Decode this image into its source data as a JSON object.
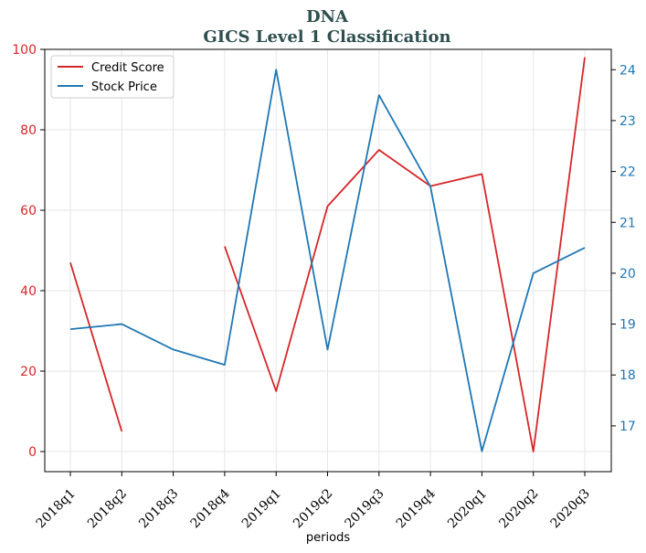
{
  "chart_data": {
    "type": "line",
    "title": "DNA",
    "subtitle": "GICS Level 1 Classification",
    "xlabel": "periods",
    "categories": [
      "2018q1",
      "2018q2",
      "2018q3",
      "2018q4",
      "2019q1",
      "2019q2",
      "2019q3",
      "2019q4",
      "2020q1",
      "2020q2",
      "2020q3"
    ],
    "series": [
      {
        "name": "Credit Score",
        "axis": "left",
        "color": "#d62728",
        "values": [
          47,
          5,
          null,
          51,
          15,
          61,
          75,
          66,
          69,
          0,
          98
        ]
      },
      {
        "name": "Stock Price",
        "axis": "right",
        "color": "#1f77b4",
        "values": [
          18.9,
          19.0,
          18.5,
          18.2,
          24.0,
          18.5,
          23.5,
          21.7,
          16.5,
          20.0,
          20.5
        ]
      }
    ],
    "left_axis": {
      "ylim": [
        -5,
        100
      ],
      "ticks": [
        0,
        20,
        40,
        60,
        80,
        100
      ],
      "color": "#d62728"
    },
    "right_axis": {
      "ylim": [
        16.1,
        24.4
      ],
      "ticks": [
        17,
        18,
        19,
        20,
        21,
        22,
        23,
        24
      ],
      "color": "#1f77b4"
    },
    "grid": true,
    "legend_position": "top-left"
  }
}
